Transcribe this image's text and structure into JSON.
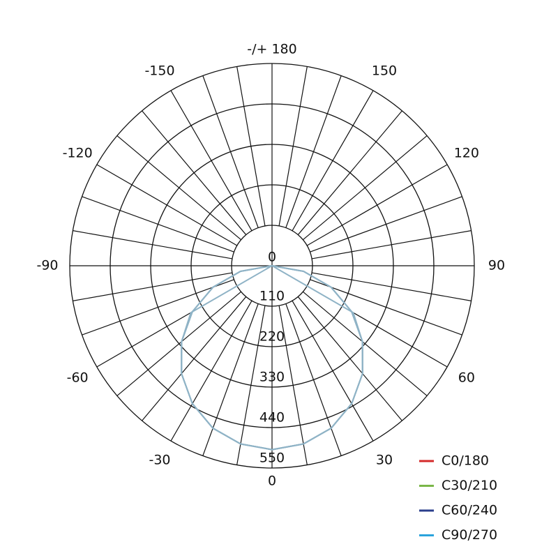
{
  "chart_data": {
    "type": "polar",
    "title": "",
    "radial_ticks": [
      "0",
      "110",
      "220",
      "330",
      "440",
      "550"
    ],
    "radial_max": 550,
    "angle_ticks": [
      {
        "angle": 180,
        "label": "-/+ 180"
      },
      {
        "angle": 150,
        "label": "150"
      },
      {
        "angle": -150,
        "label": "-150"
      },
      {
        "angle": 120,
        "label": "120"
      },
      {
        "angle": -120,
        "label": "-120"
      },
      {
        "angle": 90,
        "label": "90"
      },
      {
        "angle": -90,
        "label": "-90"
      },
      {
        "angle": 60,
        "label": "60"
      },
      {
        "angle": -60,
        "label": "-60"
      },
      {
        "angle": 30,
        "label": "30"
      },
      {
        "angle": -30,
        "label": "-30"
      },
      {
        "angle": 0,
        "label": "0"
      }
    ],
    "grid": true,
    "grid_angle_step": 10,
    "legend_position": "bottom-right",
    "series": [
      {
        "name": "C0/180",
        "color": "#d42a2a",
        "angles": [
          -90,
          -80,
          -70,
          -60,
          -50,
          -40,
          -30,
          -20,
          -10,
          0,
          10,
          20,
          30,
          40,
          50,
          60,
          70,
          80,
          90
        ],
        "values": [
          0,
          87,
          171,
          250,
          321,
          383,
          433,
          470,
          492,
          500,
          492,
          470,
          433,
          383,
          321,
          250,
          171,
          87,
          0
        ]
      },
      {
        "name": "C30/210",
        "color": "#7ab648",
        "angles": [
          -90,
          -80,
          -70,
          -60,
          -50,
          -40,
          -30,
          -20,
          -10,
          0,
          10,
          20,
          30,
          40,
          50,
          60,
          70,
          80,
          90
        ],
        "values": [
          0,
          87,
          171,
          250,
          321,
          383,
          433,
          470,
          492,
          500,
          492,
          470,
          433,
          383,
          321,
          250,
          171,
          87,
          0
        ]
      },
      {
        "name": "C60/240",
        "color": "#2b3f8c",
        "angles": [
          -90,
          -60,
          -50,
          -40,
          -30,
          -20,
          -10,
          0,
          10,
          20,
          30,
          40,
          50,
          60,
          90
        ],
        "values": [
          0,
          255,
          321,
          383,
          433,
          470,
          492,
          500,
          492,
          470,
          433,
          383,
          321,
          255,
          0
        ]
      },
      {
        "name": "C90/270",
        "color": "#2aa3dc",
        "angles": [
          -90,
          -80,
          -70,
          -60,
          -50,
          -40,
          -30,
          -20,
          -10,
          0,
          10,
          20,
          30,
          40,
          50,
          60,
          70,
          80,
          90
        ],
        "values": [
          0,
          87,
          171,
          250,
          321,
          383,
          433,
          470,
          492,
          500,
          492,
          470,
          433,
          383,
          321,
          250,
          171,
          87,
          0
        ]
      }
    ],
    "curve_display_color": "#8fb3c6"
  }
}
